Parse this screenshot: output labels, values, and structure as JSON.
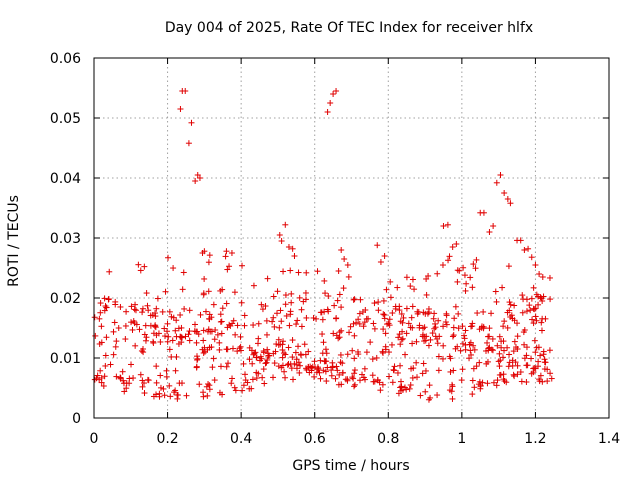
{
  "chart_data": {
    "type": "scatter",
    "title": "Day 004 of 2025, Rate Of TEC Index for receiver hlfx",
    "xlabel": "GPS time / hours",
    "ylabel": "ROTI / TECUs",
    "xlim": [
      0,
      1.4
    ],
    "ylim": [
      0,
      0.06
    ],
    "xticks": [
      0,
      0.2,
      0.4,
      0.6,
      0.8,
      1,
      1.2,
      1.4
    ],
    "xtick_labels": [
      "0",
      "0.2",
      "0.4",
      "0.6",
      "0.8",
      "1",
      "1.2",
      "1.4"
    ],
    "yticks": [
      0,
      0.01,
      0.02,
      0.03,
      0.04,
      0.05,
      0.06
    ],
    "ytick_labels": [
      "0",
      "0.01",
      "0.02",
      "0.03",
      "0.04",
      "0.05",
      "0.06"
    ],
    "grid": true,
    "marker": "+",
    "color": "#e00000",
    "series": [
      {
        "name": "ROTI",
        "points": [
          [
            0.235,
            0.0515
          ],
          [
            0.24,
            0.0545
          ],
          [
            0.248,
            0.0545
          ],
          [
            0.258,
            0.0458
          ],
          [
            0.265,
            0.0492
          ],
          [
            0.275,
            0.0395
          ],
          [
            0.282,
            0.0405
          ],
          [
            0.288,
            0.04
          ],
          [
            0.635,
            0.051
          ],
          [
            0.642,
            0.0525
          ],
          [
            0.65,
            0.054
          ],
          [
            0.658,
            0.0545
          ],
          [
            0.95,
            0.032
          ],
          [
            0.962,
            0.0322
          ],
          [
            0.975,
            0.0285
          ],
          [
            0.985,
            0.029
          ],
          [
            1.05,
            0.0342
          ],
          [
            1.06,
            0.0342
          ],
          [
            1.075,
            0.031
          ],
          [
            1.085,
            0.032
          ],
          [
            1.095,
            0.0392
          ],
          [
            1.105,
            0.0405
          ],
          [
            1.115,
            0.0375
          ],
          [
            1.125,
            0.0365
          ],
          [
            1.132,
            0.0358
          ],
          [
            0.52,
            0.0322
          ],
          [
            0.505,
            0.0305
          ],
          [
            0.51,
            0.0295
          ],
          [
            0.53,
            0.0285
          ],
          [
            0.54,
            0.0282
          ],
          [
            0.545,
            0.027
          ],
          [
            0.36,
            0.0278
          ],
          [
            0.375,
            0.0275
          ],
          [
            0.295,
            0.0275
          ],
          [
            0.3,
            0.0278
          ],
          [
            0.665,
            0.0245
          ],
          [
            0.672,
            0.028
          ],
          [
            0.68,
            0.0265
          ],
          [
            0.69,
            0.0255
          ],
          [
            0.77,
            0.0288
          ],
          [
            0.78,
            0.026
          ],
          [
            0.79,
            0.027
          ],
          [
            1.15,
            0.0296
          ],
          [
            1.16,
            0.0296
          ],
          [
            1.17,
            0.028
          ],
          [
            1.18,
            0.0282
          ],
          [
            1.19,
            0.0268
          ],
          [
            1.2,
            0.0255
          ],
          [
            1.21,
            0.024
          ],
          [
            1.22,
            0.0235
          ]
        ]
      }
    ]
  }
}
